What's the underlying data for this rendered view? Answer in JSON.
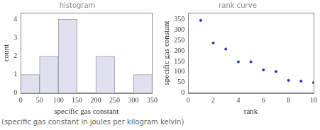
{
  "chart_data": [
    {
      "type": "histogram",
      "title": "histogram",
      "x_label": "specific gas constant",
      "y_label": "count",
      "bins": [
        0,
        50,
        100,
        150,
        200,
        250,
        300,
        350
      ],
      "values": [
        1,
        2,
        4,
        0,
        2,
        0,
        1
      ],
      "color": "#e0e0ef",
      "xlim": [
        0,
        350
      ],
      "xticks": [
        0,
        50,
        100,
        150,
        200,
        250,
        300,
        350
      ],
      "ylim": [
        0,
        4.35
      ],
      "yticks": [
        0,
        1,
        2,
        3,
        4
      ],
      "grid": false
    },
    {
      "type": "scatter",
      "title": "rank curve",
      "x_label": "rank",
      "y_label": "specific gas constant",
      "x": [
        1,
        2,
        3,
        4,
        5,
        6,
        7,
        8,
        9,
        10
      ],
      "values": [
        344,
        237,
        208,
        148,
        148,
        110,
        102,
        60,
        57,
        49
      ],
      "color": "#3a3aa8",
      "xlim": [
        0,
        10
      ],
      "xticks": [
        0,
        2,
        4,
        6,
        8,
        10
      ],
      "ylim": [
        0,
        380
      ],
      "yticks": [
        0,
        50,
        100,
        150,
        200,
        250,
        300,
        350
      ],
      "grid": false
    }
  ],
  "caption": "(specific gas constant in joules per kilogram kelvin)"
}
